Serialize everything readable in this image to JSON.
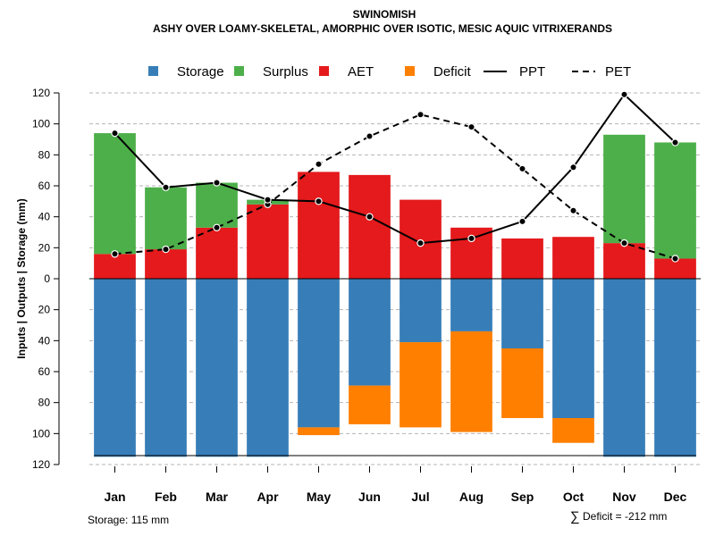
{
  "chart_data": {
    "type": "bar",
    "title": "SWINOMISH",
    "subtitle": "ASHY OVER LOAMY-SKELETAL, AMORPHIC OVER ISOTIC, MESIC AQUIC VITRIXERANDS",
    "ylabel": "Inputs | Outputs | Storage    (mm)",
    "ylim": [
      -120,
      120
    ],
    "yticks": [
      120,
      100,
      80,
      60,
      40,
      20,
      0,
      20,
      40,
      60,
      80,
      100,
      120
    ],
    "categories": [
      "Jan",
      "Feb",
      "Mar",
      "Apr",
      "May",
      "Jun",
      "Jul",
      "Aug",
      "Sep",
      "Oct",
      "Nov",
      "Dec"
    ],
    "series": [
      {
        "name": "Storage",
        "values": [
          115,
          115,
          115,
          115,
          96,
          69,
          41,
          34,
          45,
          90,
          115,
          115
        ]
      },
      {
        "name": "Surplus",
        "values": [
          78,
          40,
          29,
          3,
          0,
          0,
          0,
          0,
          0,
          0,
          70,
          75
        ]
      },
      {
        "name": "AET",
        "values": [
          16,
          19,
          33,
          48,
          69,
          67,
          51,
          33,
          26,
          27,
          23,
          13
        ]
      },
      {
        "name": "Deficit",
        "values": [
          0,
          0,
          0,
          0,
          5,
          25,
          55,
          65,
          45,
          16,
          0,
          0
        ]
      },
      {
        "name": "PPT",
        "values": [
          94,
          59,
          62,
          51,
          50,
          40,
          23,
          26,
          37,
          72,
          119,
          88
        ]
      },
      {
        "name": "PET",
        "values": [
          16,
          19,
          33,
          48,
          74,
          92,
          106,
          98,
          71,
          44,
          23,
          13
        ]
      }
    ],
    "legend": [
      "Storage",
      "Surplus",
      "AET",
      "Deficit",
      "PPT",
      "PET"
    ],
    "legend_position": "top",
    "grid": true,
    "colors": {
      "Storage": "#377eb8",
      "Surplus": "#4daf4a",
      "AET": "#e41a1c",
      "Deficit": "#ff7f00",
      "PPT": "#000000",
      "PET": "#000000"
    },
    "annotations": {
      "storage": "Storage: 115 mm",
      "deficit_symbol": "∑",
      "deficit": "Deficit = -212 mm"
    }
  }
}
